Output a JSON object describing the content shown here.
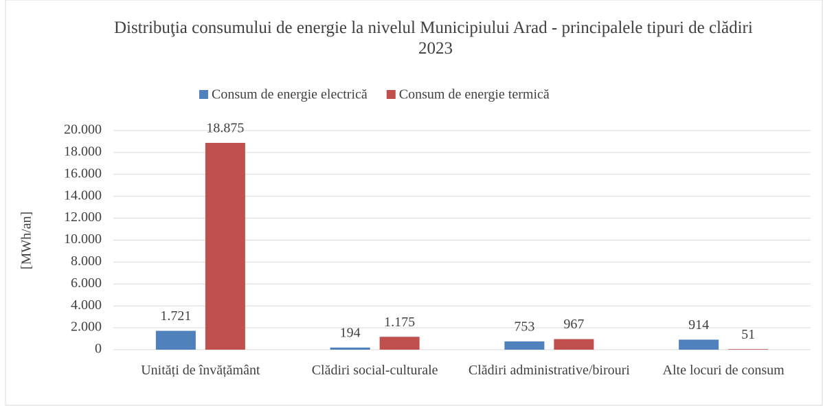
{
  "chart_data": {
    "type": "bar",
    "title": "Distribuţia consumului de energie la nivelul Municipiului Arad - principalele tipuri de clădiri 2023",
    "y_label": "[MWh/an]",
    "categories": [
      "Unități de învățământ",
      "Clădiri social-culturale",
      "Clădiri administrative/birouri",
      "Alte locuri de consum"
    ],
    "series": [
      {
        "name": "Consum de energie electrică",
        "color": "#4f81bd",
        "values": [
          1721,
          194,
          753,
          914
        ],
        "value_labels": [
          "1.721",
          "194",
          "753",
          "914"
        ]
      },
      {
        "name": "Consum de energie termică",
        "color": "#c0504d",
        "values": [
          18875,
          1175,
          967,
          51
        ],
        "value_labels": [
          "18.875",
          "1.175",
          "967",
          "51"
        ]
      }
    ],
    "ylim": [
      0,
      20000
    ],
    "yticks": [
      0,
      {
        "value": 2000,
        "label": "2.000"
      },
      {
        "value": 4000,
        "label": "4.000"
      },
      {
        "value": 6000,
        "label": "6.000"
      },
      {
        "value": 8000,
        "label": "8.000"
      },
      {
        "value": 10000,
        "label": "10.000"
      },
      {
        "value": 12000,
        "label": "12.000"
      },
      {
        "value": 14000,
        "label": "14.000"
      },
      {
        "value": 16000,
        "label": "16.000"
      },
      {
        "value": 18000,
        "label": "18.000"
      },
      {
        "value": 20000,
        "label": "20.000"
      }
    ],
    "grid": true,
    "legend": "top"
  }
}
